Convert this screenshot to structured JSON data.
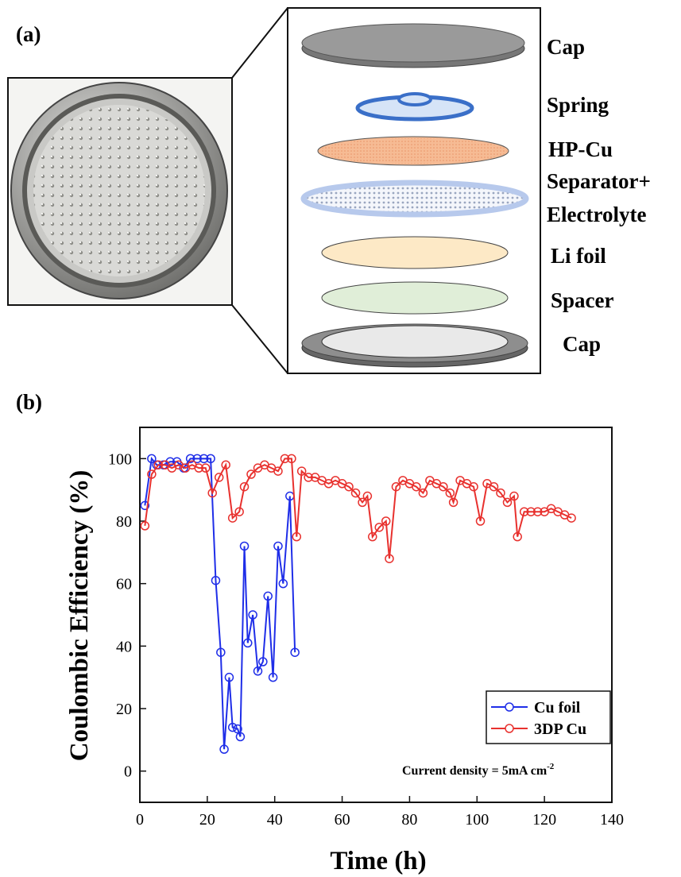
{
  "panel_a": {
    "label": "(a)",
    "layers": [
      "Cap",
      "Spring",
      "HP-Cu",
      "Separator+",
      "Electrolyte",
      "Li foil",
      "Spacer",
      "Cap"
    ]
  },
  "chart_data": {
    "type": "line",
    "panel_label": "(b)",
    "xlabel": "Time (h)",
    "ylabel": "Coulombic Efficiency (%)",
    "annotation": {
      "text": "Current density = 5mA cm",
      "sup": "-2"
    },
    "xlim": [
      0,
      140
    ],
    "xticks": [
      0,
      20,
      40,
      60,
      80,
      100,
      120,
      140
    ],
    "ylim": [
      -10,
      110
    ],
    "yticks": [
      0,
      20,
      40,
      60,
      80,
      100
    ],
    "legend": "lower right",
    "marker": "open-circle",
    "series": [
      {
        "name": "Cu foil",
        "color": "#1f2ee8",
        "x": [
          1.5,
          3.5,
          5,
          7,
          9,
          11,
          13,
          15,
          17,
          19,
          21,
          22.5,
          24,
          25,
          26.5,
          27.5,
          29,
          29.8,
          31,
          32,
          33.5,
          35,
          36.5,
          38,
          39.5,
          41,
          42.5,
          44.5,
          46
        ],
        "values": [
          85,
          100,
          98,
          98,
          99,
          99,
          97,
          100,
          100,
          100,
          100,
          61,
          38,
          7,
          30,
          14,
          13.5,
          11,
          72,
          41,
          50,
          32,
          35,
          56,
          30,
          72,
          60,
          88,
          38
        ]
      },
      {
        "name": "3DP Cu",
        "color": "#e8312e",
        "x": [
          1.5,
          3.5,
          5.5,
          7.5,
          9.5,
          11.5,
          13.5,
          15.5,
          17.5,
          19.5,
          21.5,
          23.5,
          25.5,
          27.5,
          29.5,
          31,
          33,
          35,
          37,
          39,
          41,
          43,
          45,
          46.5,
          48,
          50,
          52,
          54,
          56,
          58,
          60,
          62,
          64,
          66,
          67.5,
          69,
          71,
          73,
          74,
          76,
          78,
          80,
          82,
          84,
          86,
          88,
          90,
          92,
          93,
          95,
          97,
          99,
          101,
          103,
          105,
          107,
          109,
          111,
          112,
          114,
          116,
          118,
          120,
          122,
          124,
          126,
          128
        ],
        "values": [
          78.5,
          95,
          98,
          98,
          97,
          98,
          97,
          98,
          97,
          97,
          89,
          94,
          98,
          81,
          83,
          91,
          95,
          97,
          98,
          97,
          96,
          100,
          100,
          75,
          96,
          94,
          94,
          93,
          92,
          93,
          92,
          91,
          89,
          86,
          88,
          75,
          78,
          80,
          68,
          91,
          93,
          92,
          91,
          89,
          93,
          92,
          91,
          89,
          86,
          93,
          92,
          91,
          80,
          92,
          91,
          89,
          86,
          88,
          75,
          83,
          83,
          83,
          83,
          84,
          83,
          82,
          81
        ]
      }
    ]
  }
}
